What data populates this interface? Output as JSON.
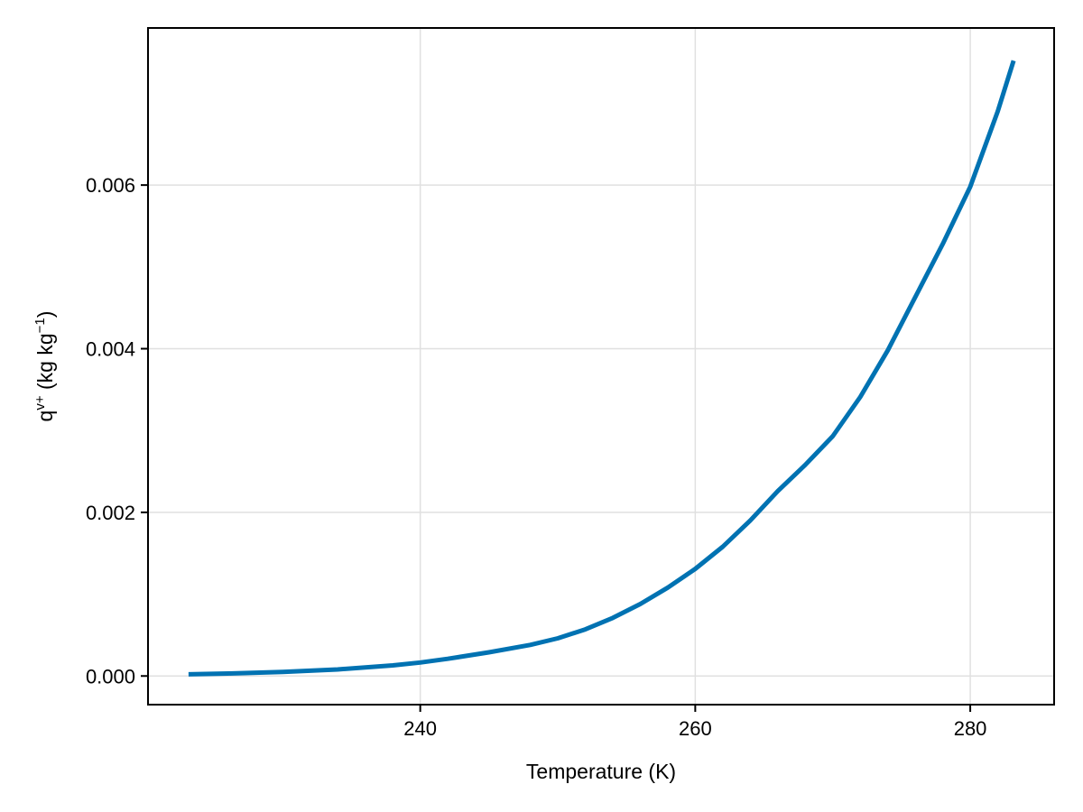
{
  "chart_data": {
    "type": "line",
    "title": "",
    "xlabel": "Temperature (K)",
    "ylabel_base": "q",
    "ylabel_sup": "v+",
    "ylabel_rest": " (kg kg",
    "ylabel_sup2": "−1",
    "ylabel_end": ")",
    "xlim": [
      220.2,
      286.1
    ],
    "ylim": [
      -0.00035,
      0.00792
    ],
    "xticks": [
      240,
      260,
      280
    ],
    "xtick_labels": [
      "240",
      "260",
      "280"
    ],
    "yticks": [
      0.0,
      0.002,
      0.004,
      0.006
    ],
    "ytick_labels": [
      "0.000",
      "0.002",
      "0.004",
      "0.006"
    ],
    "grid": true,
    "legend": null,
    "series": [
      {
        "name": "q_v+",
        "color": "#0072b2",
        "x": [
          223.15,
          226,
          230,
          234,
          238,
          240,
          242,
          245,
          248,
          250,
          252,
          254,
          256,
          258,
          260,
          262,
          264,
          266,
          268,
          270,
          272,
          274,
          276,
          278,
          280,
          282,
          283.15
        ],
        "y": [
          2e-05,
          3e-05,
          5e-05,
          8e-05,
          0.00013,
          0.000165,
          0.00021,
          0.00029,
          0.00038,
          0.00046,
          0.00057,
          0.00071,
          0.00088,
          0.00108,
          0.00131,
          0.00158,
          0.0019,
          0.00226,
          0.00258,
          0.00293,
          0.00341,
          0.00398,
          0.00463,
          0.00528,
          0.00598,
          0.0069,
          0.00752
        ]
      }
    ]
  }
}
